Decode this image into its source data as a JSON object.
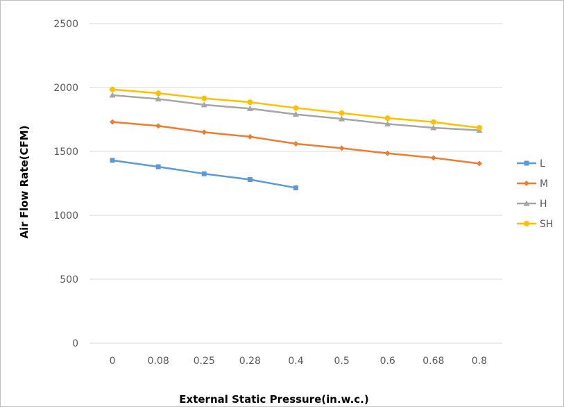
{
  "chart_data": {
    "type": "line",
    "title": "",
    "xlabel": "External Static Pressure(in.w.c.)",
    "ylabel": "Air Flow Rate(CFM)",
    "categories": [
      "0",
      "0.08",
      "0.25",
      "0.28",
      "0.4",
      "0.5",
      "0.6",
      "0.68",
      "0.8"
    ],
    "ylim": [
      0,
      2500
    ],
    "yticks": [
      0,
      500,
      1000,
      1500,
      2000,
      2500
    ],
    "grid": "horizontal",
    "legend_position": "right",
    "series": [
      {
        "name": "L",
        "color": "#5b9bd5",
        "marker": "square",
        "values": [
          1430,
          1380,
          1325,
          1280,
          1215,
          null,
          null,
          null,
          null
        ]
      },
      {
        "name": "M",
        "color": "#ed7d31",
        "marker": "diamond",
        "values": [
          1730,
          1700,
          1650,
          1615,
          1560,
          1525,
          1485,
          1450,
          1405
        ]
      },
      {
        "name": "H",
        "color": "#a5a5a5",
        "marker": "triangle",
        "values": [
          1940,
          1910,
          1865,
          1835,
          1790,
          1755,
          1715,
          1685,
          1665
        ]
      },
      {
        "name": "SH",
        "color": "#ffc000",
        "marker": "circle",
        "values": [
          1985,
          1955,
          1915,
          1885,
          1840,
          1800,
          1760,
          1730,
          1685
        ]
      }
    ]
  }
}
